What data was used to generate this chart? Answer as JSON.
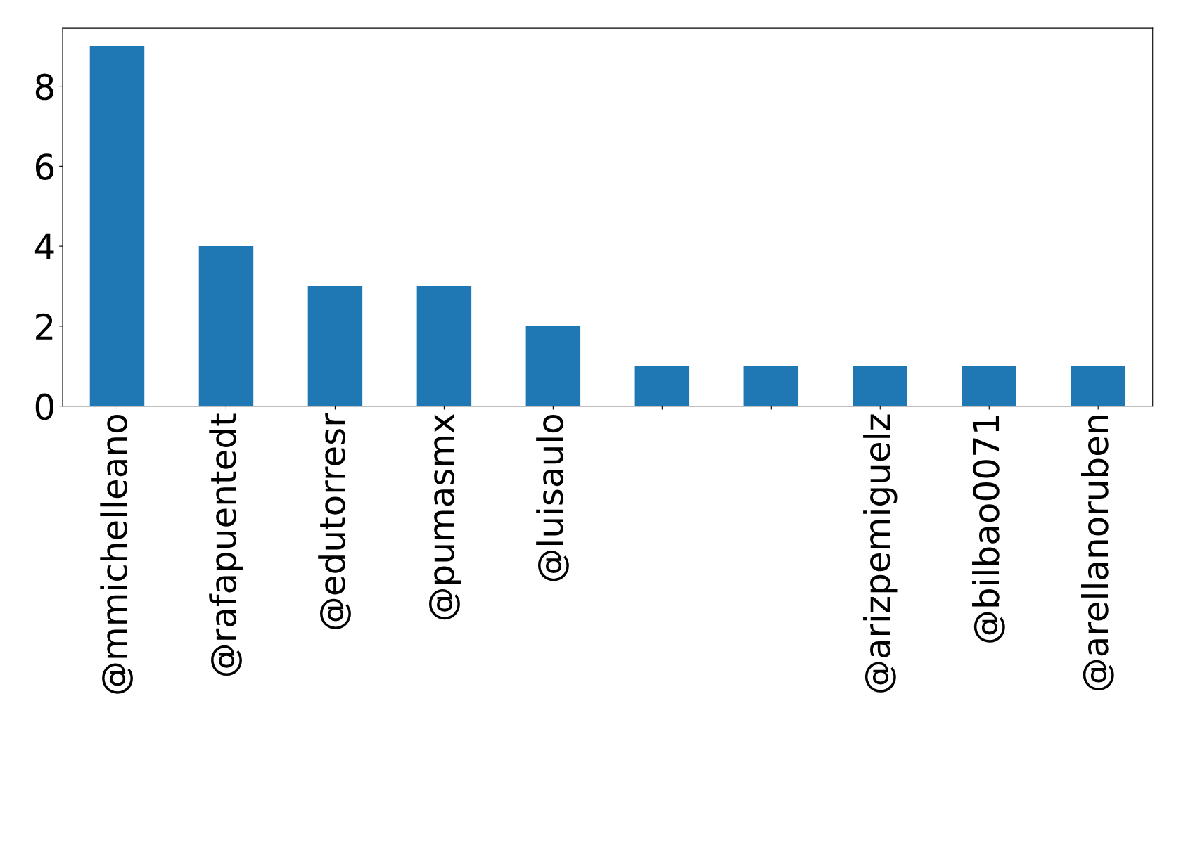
{
  "chart_data": {
    "type": "bar",
    "categories": [
      "@mmichelleano",
      "@rafapuentedt",
      "@edutorresr",
      "@pumasmx",
      "@luisaulo",
      null,
      null,
      "@arizpemiguelz",
      "@bilbao0071",
      "@arellanoruben"
    ],
    "values": [
      9,
      4,
      3,
      3,
      2,
      1,
      1,
      1,
      1,
      1
    ],
    "color": "#1f77b4",
    "ylim": [
      0,
      9.45
    ],
    "yticks": [
      0,
      2,
      4,
      6,
      8
    ],
    "grid": false,
    "legend": false
  }
}
